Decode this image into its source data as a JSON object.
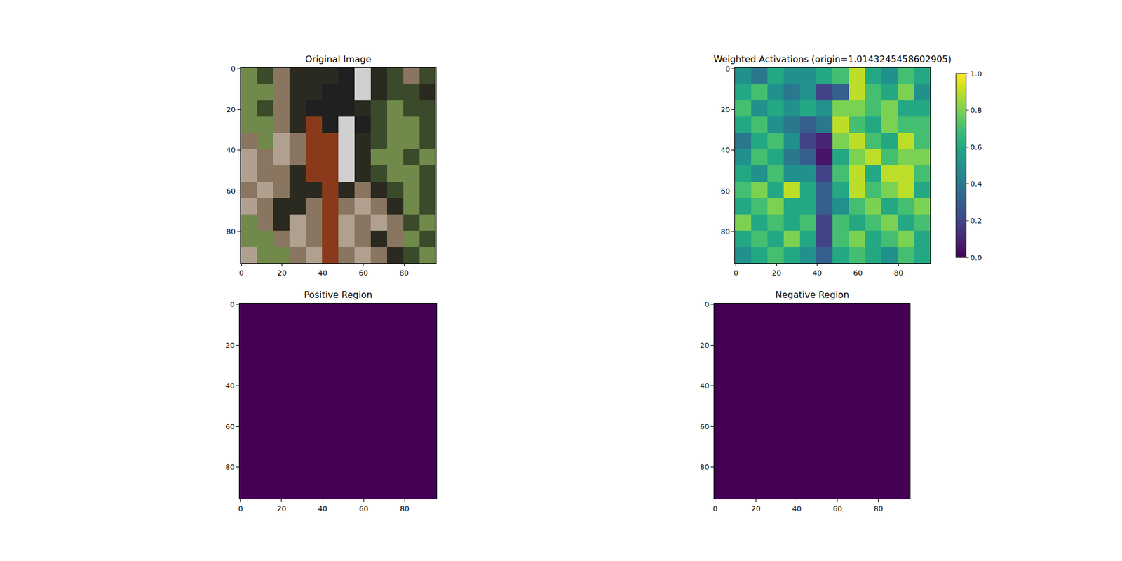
{
  "chart_data": [
    {
      "type": "image",
      "title": "Original Image",
      "xlim": [
        -0.5,
        95.5
      ],
      "ylim": [
        95.5,
        -0.5
      ],
      "xticks": [
        0,
        20,
        40,
        60,
        80
      ],
      "yticks": [
        0,
        20,
        40,
        60,
        80
      ],
      "x": [
        3.5,
        11.5,
        19.5,
        27.5,
        35.5,
        43.5,
        51.5,
        59.5,
        67.5,
        75.5,
        83.5,
        91.5
      ],
      "y": [
        3.5,
        11.5,
        19.5,
        27.5,
        35.5,
        43.5,
        51.5,
        59.5,
        67.5,
        75.5,
        83.5,
        91.5
      ],
      "pixels": [
        [
          "#6f8a4a",
          "#3a4a2a",
          "#8a7560",
          "#2a2a20",
          "#2a2a20",
          "#2a2a20",
          "#202020",
          "#d0d0d0",
          "#2a2a20",
          "#3a4a2a",
          "#8a7560",
          "#3a4a2a"
        ],
        [
          "#6f8a4a",
          "#6f8a4a",
          "#8a7560",
          "#2a2a20",
          "#2a2a20",
          "#202020",
          "#202020",
          "#d0d0d0",
          "#2a2a20",
          "#3a4a2a",
          "#3a4a2a",
          "#2a2a20"
        ],
        [
          "#6f8a4a",
          "#3a4a2a",
          "#8a7560",
          "#2a2a20",
          "#202020",
          "#202020",
          "#202020",
          "#2a2a20",
          "#3a4a2a",
          "#6f8a4a",
          "#3a4a2a",
          "#3a4a2a"
        ],
        [
          "#6f8a4a",
          "#6f8a4a",
          "#8a7560",
          "#2a2a20",
          "#8a3a1a",
          "#202020",
          "#d0d0d0",
          "#202020",
          "#3a4a2a",
          "#6f8a4a",
          "#6f8a4a",
          "#3a4a2a"
        ],
        [
          "#8a7560",
          "#6f8a4a",
          "#b0a090",
          "#8a7560",
          "#8a3a1a",
          "#8a3a1a",
          "#d0d0d0",
          "#2a2a20",
          "#3a4a2a",
          "#6f8a4a",
          "#6f8a4a",
          "#3a4a2a"
        ],
        [
          "#b0a090",
          "#8a7560",
          "#b0a090",
          "#8a7560",
          "#8a3a1a",
          "#8a3a1a",
          "#d0d0d0",
          "#2a2a20",
          "#6f8a4a",
          "#6f8a4a",
          "#3a4a2a",
          "#6f8a4a"
        ],
        [
          "#b0a090",
          "#8a7560",
          "#8a7560",
          "#2a2a20",
          "#8a3a1a",
          "#8a3a1a",
          "#d0d0d0",
          "#2a2a20",
          "#3a4a2a",
          "#6f8a4a",
          "#6f8a4a",
          "#3a4a2a"
        ],
        [
          "#8a7560",
          "#b0a090",
          "#8a7560",
          "#2a2a20",
          "#2a2a20",
          "#8a3a1a",
          "#2a2a20",
          "#8a7560",
          "#2a2a20",
          "#3a4a2a",
          "#6f8a4a",
          "#3a4a2a"
        ],
        [
          "#b0a090",
          "#8a7560",
          "#2a2a20",
          "#2a2a20",
          "#8a7560",
          "#8a3a1a",
          "#8a7560",
          "#b0a090",
          "#8a7560",
          "#2a2a20",
          "#6f8a4a",
          "#3a4a2a"
        ],
        [
          "#6f8a4a",
          "#8a7560",
          "#2a2a20",
          "#b0a090",
          "#8a7560",
          "#8a3a1a",
          "#b0a090",
          "#8a7560",
          "#b0a090",
          "#8a7560",
          "#3a4a2a",
          "#6f8a4a"
        ],
        [
          "#6f8a4a",
          "#6f8a4a",
          "#8a7560",
          "#b0a090",
          "#8a7560",
          "#8a3a1a",
          "#b0a090",
          "#8a7560",
          "#2a2a20",
          "#8a7560",
          "#6f8a4a",
          "#3a4a2a"
        ],
        [
          "#b0a090",
          "#6f8a4a",
          "#6f8a4a",
          "#8a7560",
          "#b0a090",
          "#8a3a1a",
          "#8a7560",
          "#b0a090",
          "#8a7560",
          "#2a2a20",
          "#3a4a2a",
          "#6f8a4a"
        ]
      ]
    },
    {
      "type": "heatmap",
      "title": "Weighted Activations (origin=1.0143245458602905)",
      "xlim": [
        -0.5,
        95.5
      ],
      "ylim": [
        95.5,
        -0.5
      ],
      "xticks": [
        0,
        20,
        40,
        60,
        80
      ],
      "yticks": [
        0,
        20,
        40,
        60,
        80
      ],
      "x": [
        3.5,
        11.5,
        19.5,
        27.5,
        35.5,
        43.5,
        51.5,
        59.5,
        67.5,
        75.5,
        83.5,
        91.5
      ],
      "y": [
        3.5,
        11.5,
        19.5,
        27.5,
        35.5,
        43.5,
        51.5,
        59.5,
        67.5,
        75.5,
        83.5,
        91.5
      ],
      "cells": [
        [
          0.5,
          0.4,
          0.6,
          0.5,
          0.5,
          0.6,
          0.7,
          0.9,
          0.6,
          0.5,
          0.7,
          0.6
        ],
        [
          0.6,
          0.7,
          0.5,
          0.4,
          0.5,
          0.2,
          0.3,
          0.9,
          0.7,
          0.6,
          0.8,
          0.5
        ],
        [
          0.7,
          0.5,
          0.6,
          0.5,
          0.6,
          0.5,
          0.8,
          0.8,
          0.7,
          0.8,
          0.6,
          0.6
        ],
        [
          0.6,
          0.7,
          0.5,
          0.4,
          0.3,
          0.4,
          0.9,
          0.7,
          0.6,
          0.8,
          0.7,
          0.7
        ],
        [
          0.4,
          0.6,
          0.7,
          0.5,
          0.2,
          0.1,
          0.8,
          0.9,
          0.7,
          0.6,
          0.9,
          0.7
        ],
        [
          0.5,
          0.7,
          0.6,
          0.4,
          0.3,
          0.05,
          0.6,
          0.8,
          0.9,
          0.7,
          0.8,
          0.8
        ],
        [
          0.6,
          0.5,
          0.7,
          0.5,
          0.5,
          0.2,
          0.7,
          0.9,
          0.6,
          0.9,
          0.9,
          0.7
        ],
        [
          0.7,
          0.8,
          0.6,
          0.9,
          0.6,
          0.3,
          0.6,
          0.9,
          0.7,
          0.8,
          0.9,
          0.6
        ],
        [
          0.6,
          0.7,
          0.8,
          0.6,
          0.6,
          0.3,
          0.5,
          0.7,
          0.8,
          0.6,
          0.7,
          0.8
        ],
        [
          0.8,
          0.6,
          0.7,
          0.6,
          0.7,
          0.2,
          0.7,
          0.6,
          0.7,
          0.8,
          0.6,
          0.7
        ],
        [
          0.6,
          0.7,
          0.6,
          0.8,
          0.6,
          0.2,
          0.7,
          0.8,
          0.6,
          0.7,
          0.8,
          0.6
        ],
        [
          0.5,
          0.6,
          0.7,
          0.6,
          0.5,
          0.3,
          0.6,
          0.7,
          0.6,
          0.5,
          0.7,
          0.6
        ]
      ],
      "colorbar": {
        "range": [
          0,
          1
        ],
        "ticks": [
          {
            "value": 0,
            "label": "0.0"
          },
          {
            "value": 0.2,
            "label": "0.2"
          },
          {
            "value": 0.4,
            "label": "0.4"
          },
          {
            "value": 0.6,
            "label": "0.6"
          },
          {
            "value": 0.8,
            "label": "0.8"
          },
          {
            "value": 1,
            "label": "1.0"
          }
        ]
      }
    },
    {
      "type": "heatmap",
      "title": "Positive Region",
      "xlim": [
        -0.5,
        95.5
      ],
      "ylim": [
        95.5,
        -0.5
      ],
      "xticks": [
        0,
        20,
        40,
        60,
        80
      ],
      "yticks": [
        0,
        20,
        40,
        60,
        80
      ],
      "x": [
        23.5,
        71.5
      ],
      "y": [
        23.5,
        71.5
      ],
      "cells": [
        [
          0,
          0
        ],
        [
          0,
          0
        ]
      ],
      "zlim": [
        0,
        1
      ]
    },
    {
      "type": "heatmap",
      "title": "Negative Region",
      "xlim": [
        -0.5,
        95.5
      ],
      "ylim": [
        95.5,
        -0.5
      ],
      "xticks": [
        0,
        20,
        40,
        60,
        80
      ],
      "yticks": [
        0,
        20,
        40,
        60,
        80
      ],
      "x": [
        23.5,
        71.5
      ],
      "y": [
        23.5,
        71.5
      ],
      "cells": [
        [
          0,
          0
        ],
        [
          0,
          0
        ]
      ],
      "zlim": [
        0,
        1
      ]
    }
  ]
}
